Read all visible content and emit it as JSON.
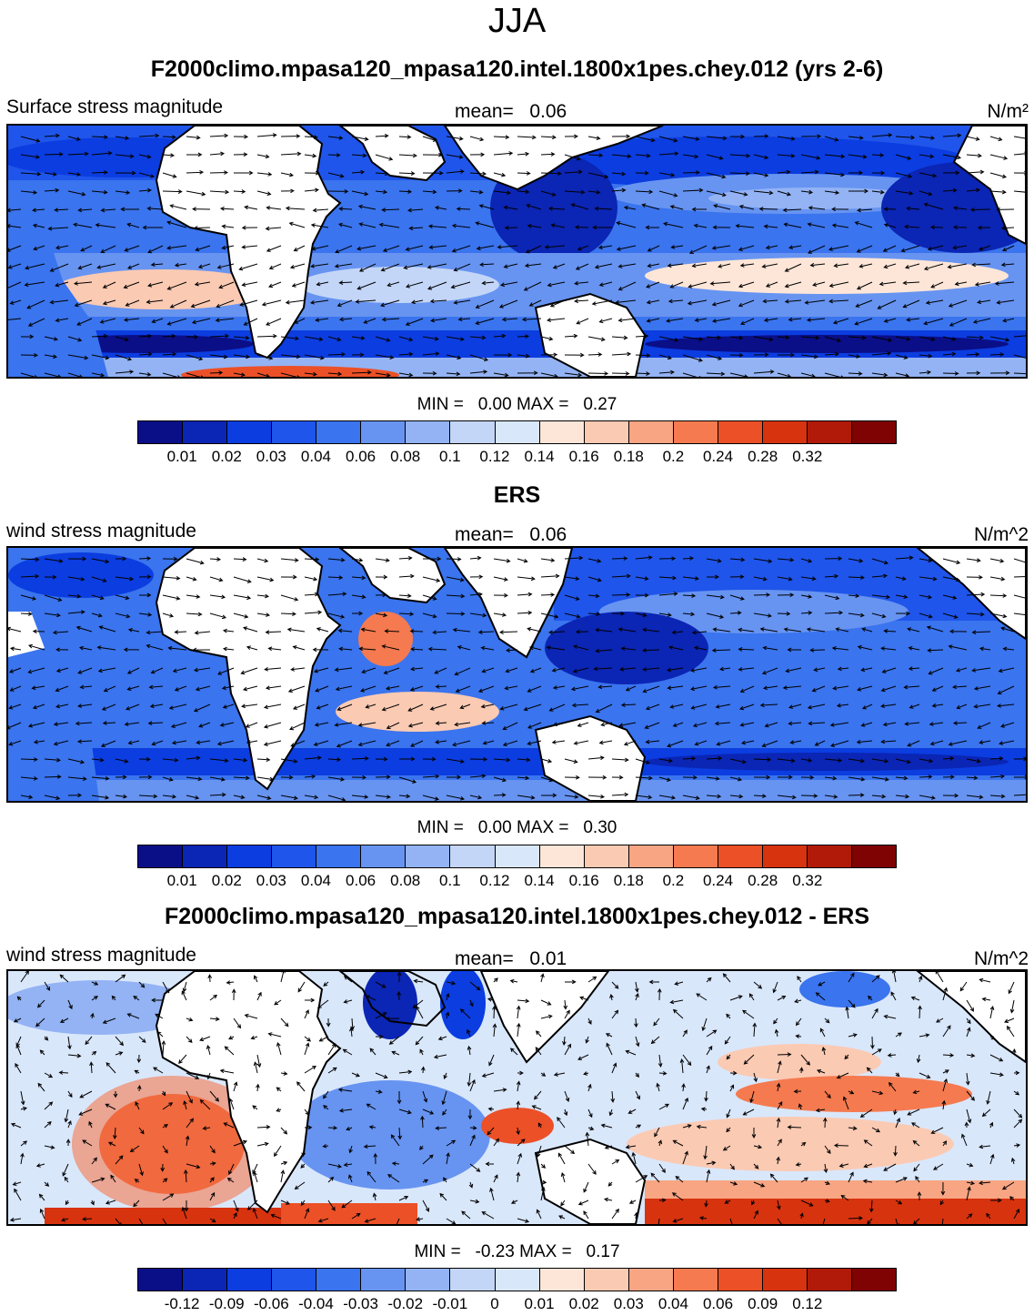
{
  "figure_title": "JJA",
  "colors": {
    "diverging_scale": [
      "#0a0e87",
      "#0b25b4",
      "#0b3de0",
      "#1f55ea",
      "#3a74ee",
      "#6794f1",
      "#93b3f4",
      "#c3d6f8",
      "#d9e7fb",
      "#fde6d8",
      "#fbcab3",
      "#f8a583",
      "#f57a4f",
      "#ec5027",
      "#d8330f",
      "#b11a08",
      "#7f0303"
    ],
    "land": "#ffffff",
    "coast": "#000000",
    "arrow": "#000000"
  },
  "panels": [
    {
      "title": "F2000climo.mpasa120_mpasa120.intel.1800x1pes.chey.012 (yrs 2-6)",
      "left_string": "Surface stress magnitude",
      "mean_label": "mean=",
      "mean_value": "0.06",
      "units": "N/m²",
      "min_label": "MIN =",
      "min_value": "0.00",
      "max_label": "MAX =",
      "max_value": "0.27",
      "colorbar_ticks": [
        "0.01",
        "0.02",
        "0.03",
        "0.04",
        "0.06",
        "0.08",
        "0.1",
        "0.12",
        "0.14",
        "0.16",
        "0.18",
        "0.2",
        "0.24",
        "0.28",
        "0.32"
      ]
    },
    {
      "title": "ERS",
      "left_string": "wind stress magnitude",
      "mean_label": "mean=",
      "mean_value": "0.06",
      "units": "N/m^2",
      "min_label": "MIN =",
      "min_value": "0.00",
      "max_label": "MAX =",
      "max_value": "0.30",
      "colorbar_ticks": [
        "0.01",
        "0.02",
        "0.03",
        "0.04",
        "0.06",
        "0.08",
        "0.1",
        "0.12",
        "0.14",
        "0.16",
        "0.18",
        "0.2",
        "0.24",
        "0.28",
        "0.32"
      ]
    },
    {
      "title": "F2000climo.mpasa120_mpasa120.intel.1800x1pes.chey.012 - ERS",
      "left_string": "wind stress magnitude",
      "mean_label": "mean=",
      "mean_value": "0.01",
      "units": "N/m^2",
      "min_label": "MIN =",
      "min_value": "-0.23",
      "max_label": "MAX =",
      "max_value": "0.17",
      "colorbar_ticks": [
        "-0.12",
        "-0.09",
        "-0.06",
        "-0.04",
        "-0.03",
        "-0.02",
        "-0.01",
        "0",
        "0.01",
        "0.02",
        "0.03",
        "0.04",
        "0.06",
        "0.09",
        "0.12"
      ]
    }
  ]
}
